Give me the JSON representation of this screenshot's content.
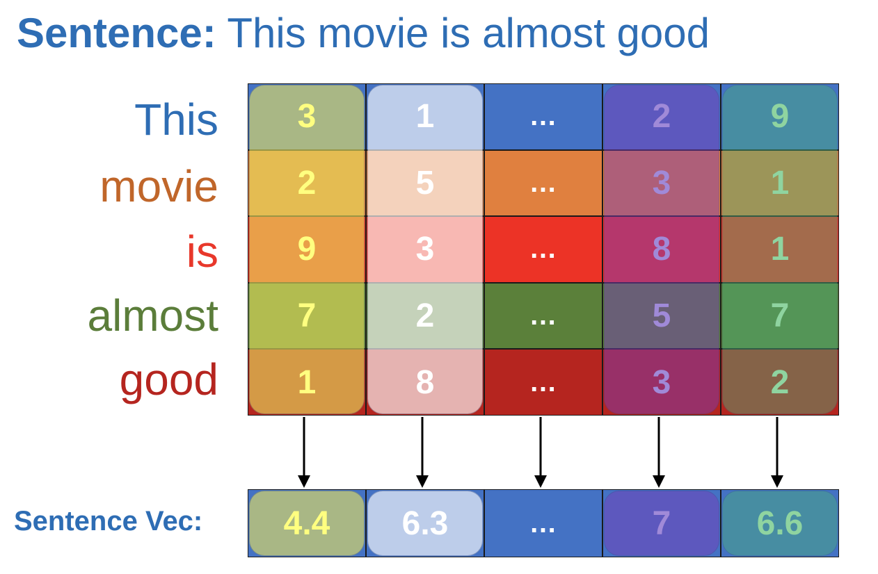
{
  "title": {
    "bold": "Sentence:",
    "rest": "This movie is almost good"
  },
  "words": [
    {
      "text": "This",
      "color": "#2E6DB4"
    },
    {
      "text": "movie",
      "color": "#C0662A"
    },
    {
      "text": "is",
      "color": "#E8382B"
    },
    {
      "text": "almost",
      "color": "#5B7D3A"
    },
    {
      "text": "good",
      "color": "#B5251F"
    }
  ],
  "matrix": [
    [
      "3",
      "1",
      "...",
      "2",
      "9"
    ],
    [
      "2",
      "5",
      "...",
      "3",
      "1"
    ],
    [
      "9",
      "3",
      "...",
      "8",
      "1"
    ],
    [
      "7",
      "2",
      "...",
      "5",
      "7"
    ],
    [
      "1",
      "8",
      "...",
      "3",
      "2"
    ]
  ],
  "sentence_vec_label": "Sentence Vec:",
  "sentence_vec": [
    "4.4",
    "6.3",
    "...",
    "7",
    "6.6"
  ],
  "colors": {
    "row_bases": [
      "#4472C4",
      "#E0803F",
      "#EC3326",
      "#5B803A",
      "#B5251F"
    ],
    "column_overlays": [
      "#E8E25F",
      "#FFFFFF",
      "none",
      "#7A3DB8",
      "#4CAF7A"
    ],
    "column_text": [
      "#FFFF80",
      "#FFFFFF",
      "#FFFFFF",
      "#A08AD8",
      "#8FD4A0"
    ],
    "vec_base": "#4472C4",
    "arrow": "#000000"
  }
}
